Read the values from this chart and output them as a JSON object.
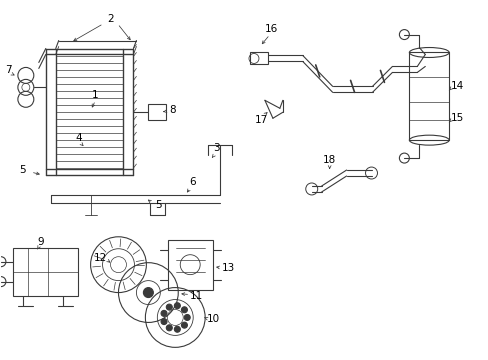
{
  "bg_color": "#ffffff",
  "line_color": "#3a3a3a",
  "label_color": "#000000",
  "figsize": [
    4.89,
    3.6
  ],
  "dpi": 100,
  "xlim": [
    0,
    489
  ],
  "ylim": [
    0,
    360
  ]
}
